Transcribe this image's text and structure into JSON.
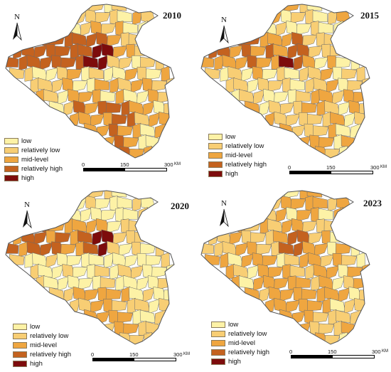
{
  "legend": {
    "classes": [
      {
        "label": "low",
        "color": "#fdf2a6"
      },
      {
        "label": "relatively low",
        "color": "#f8ce74"
      },
      {
        "label": "mid-level",
        "color": "#efa640"
      },
      {
        "label": "relatively high",
        "color": "#c4621f"
      },
      {
        "label": "high",
        "color": "#7d0c0c"
      }
    ]
  },
  "scale": {
    "t0": "0",
    "t1": "150",
    "t2": "300",
    "unit": "KM"
  },
  "north_label": "N",
  "panels": [
    {
      "year": "2010"
    },
    {
      "year": "2015"
    },
    {
      "year": "2020"
    },
    {
      "year": "2023"
    }
  ],
  "boundary_color": "#6b6b6b"
}
